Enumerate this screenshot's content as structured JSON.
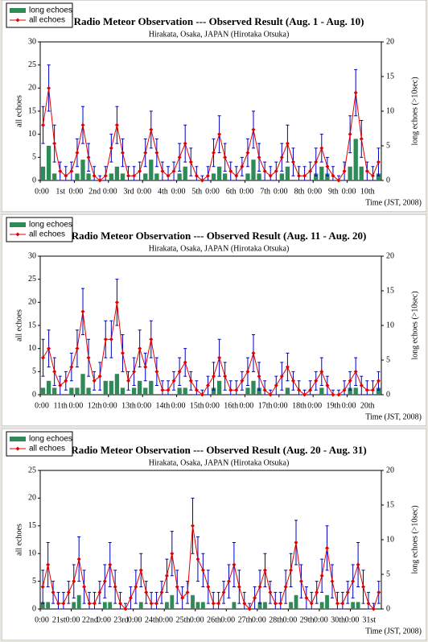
{
  "chart_data": [
    {
      "type": "line",
      "title": "Radio Meteor Observation --- Observed Result (Aug. 1 - Aug. 10)",
      "subtitle": "Hirakata, Osaka, JAPAN (Hirotaka Otsuka)",
      "y_label": "all echoes",
      "y2_label": "long echoes (>10sec)",
      "x_label": "Time (JST, 2008)",
      "legend": "upper left",
      "xlim": [
        0,
        240
      ],
      "xticks": [
        {
          "value": 0,
          "label": "0:00"
        },
        {
          "value": 24,
          "label": "0:00"
        },
        {
          "value": 48,
          "label": "0:00"
        },
        {
          "value": 72,
          "label": "0:00"
        },
        {
          "value": 96,
          "label": "0:00"
        },
        {
          "value": 120,
          "label": "0:00"
        },
        {
          "value": 144,
          "label": "0:00"
        },
        {
          "value": 168,
          "label": "0:00"
        },
        {
          "value": 192,
          "label": "0:00"
        },
        {
          "value": 216,
          "label": "0:00"
        }
      ],
      "day_labels": [
        "1st",
        "2nd",
        "3rd",
        "4th",
        "5th",
        "6th",
        "7th",
        "8th",
        "9th",
        "10th"
      ],
      "ylim": [
        0,
        30
      ],
      "yticks": [
        0,
        5,
        10,
        15,
        20,
        25,
        30
      ],
      "y2lim": [
        0,
        20
      ],
      "y2ticks": [
        0,
        5,
        10,
        15,
        20
      ],
      "x": [
        2,
        6,
        10,
        14,
        18,
        22,
        26,
        30,
        34,
        38,
        42,
        46,
        50,
        54,
        58,
        62,
        66,
        70,
        74,
        78,
        82,
        86,
        90,
        94,
        98,
        102,
        106,
        110,
        114,
        118,
        122,
        126,
        130,
        134,
        138,
        142,
        146,
        150,
        154,
        158,
        162,
        166,
        170,
        174,
        178,
        182,
        186,
        190,
        194,
        198,
        202,
        206,
        210,
        214,
        218,
        222,
        226,
        230,
        234,
        238
      ],
      "series": [
        {
          "name": "long echoes",
          "type": "bar",
          "axis": "y2",
          "color": "#2e8b57",
          "values": [
            2,
            5,
            1,
            0,
            0,
            0,
            1,
            3,
            1,
            0,
            0,
            0,
            1,
            2,
            1,
            0,
            0,
            0,
            1,
            3,
            1,
            0,
            0,
            0,
            1,
            2,
            0,
            0,
            0,
            0,
            1,
            2,
            1,
            0,
            0,
            0,
            1,
            3,
            1,
            0,
            0,
            0,
            1,
            2,
            0,
            0,
            0,
            0,
            1,
            2,
            1,
            0,
            0,
            0,
            2,
            6,
            2,
            0,
            0,
            1
          ]
        },
        {
          "name": "all echoes",
          "type": "line",
          "color": "#e00000",
          "error_color": "#0000c0",
          "values": [
            12,
            20,
            8,
            2,
            1,
            2,
            6,
            12,
            5,
            1,
            0,
            1,
            7,
            12,
            6,
            1,
            1,
            2,
            6,
            11,
            6,
            2,
            1,
            2,
            5,
            8,
            4,
            1,
            0,
            1,
            6,
            10,
            5,
            2,
            1,
            3,
            6,
            11,
            5,
            2,
            1,
            2,
            5,
            8,
            4,
            1,
            1,
            2,
            4,
            7,
            3,
            1,
            0,
            2,
            10,
            19,
            9,
            2,
            1,
            4
          ],
          "errors": [
            4,
            5,
            4,
            2,
            2,
            2,
            3,
            4,
            3,
            2,
            1,
            2,
            3,
            4,
            3,
            2,
            2,
            2,
            3,
            4,
            3,
            2,
            2,
            2,
            3,
            4,
            3,
            2,
            1,
            2,
            3,
            4,
            3,
            2,
            2,
            2,
            3,
            4,
            3,
            2,
            2,
            2,
            3,
            4,
            3,
            2,
            2,
            2,
            3,
            3,
            2,
            2,
            1,
            2,
            4,
            5,
            4,
            2,
            2,
            3
          ]
        }
      ]
    },
    {
      "type": "line",
      "title": "Radio Meteor Observation --- Observed Result (Aug. 11 - Aug. 20)",
      "subtitle": "Hirakata, Osaka, JAPAN (Hirotaka Otsuka)",
      "y_label": "all echoes",
      "y2_label": "long echoes (>10sec)",
      "x_label": "Time (JST, 2008)",
      "legend": "upper left",
      "xlim": [
        0,
        240
      ],
      "xticks": [
        {
          "value": 0,
          "label": "0:00"
        },
        {
          "value": 24,
          "label": "0:00"
        },
        {
          "value": 48,
          "label": "0:00"
        },
        {
          "value": 72,
          "label": "0:00"
        },
        {
          "value": 96,
          "label": "0:00"
        },
        {
          "value": 120,
          "label": "0:00"
        },
        {
          "value": 144,
          "label": "0:00"
        },
        {
          "value": 168,
          "label": "0:00"
        },
        {
          "value": 192,
          "label": "0:00"
        },
        {
          "value": 216,
          "label": "0:00"
        }
      ],
      "day_labels": [
        "11th",
        "12th",
        "13th",
        "14th",
        "15th",
        "16th",
        "17th",
        "18th",
        "19th",
        "20th"
      ],
      "ylim": [
        0,
        30
      ],
      "yticks": [
        0,
        5,
        10,
        15,
        20,
        25,
        30
      ],
      "y2lim": [
        0,
        20
      ],
      "y2ticks": [
        0,
        5,
        10,
        15,
        20
      ],
      "x": [
        2,
        6,
        10,
        14,
        18,
        22,
        26,
        30,
        34,
        38,
        42,
        46,
        50,
        54,
        58,
        62,
        66,
        70,
        74,
        78,
        82,
        86,
        90,
        94,
        98,
        102,
        106,
        110,
        114,
        118,
        122,
        126,
        130,
        134,
        138,
        142,
        146,
        150,
        154,
        158,
        162,
        166,
        170,
        174,
        178,
        182,
        186,
        190,
        194,
        198,
        202,
        206,
        210,
        214,
        218,
        222,
        226,
        230,
        234,
        238
      ],
      "series": [
        {
          "name": "long echoes",
          "type": "bar",
          "axis": "y2",
          "color": "#2e8b57",
          "values": [
            1,
            2,
            1,
            0,
            0,
            1,
            1,
            3,
            1,
            0,
            0,
            2,
            2,
            3,
            1,
            0,
            1,
            2,
            1,
            2,
            0,
            0,
            0,
            0,
            1,
            1,
            0,
            0,
            0,
            0,
            1,
            2,
            0,
            0,
            0,
            0,
            1,
            2,
            1,
            0,
            0,
            0,
            0,
            1,
            0,
            0,
            0,
            0,
            0,
            1,
            0,
            0,
            0,
            0,
            1,
            1,
            0,
            0,
            0,
            1
          ]
        },
        {
          "name": "all echoes",
          "type": "line",
          "color": "#e00000",
          "error_color": "#0000c0",
          "values": [
            8,
            10,
            5,
            2,
            3,
            6,
            10,
            18,
            8,
            3,
            4,
            12,
            12,
            20,
            9,
            3,
            5,
            10,
            6,
            12,
            5,
            1,
            1,
            3,
            5,
            7,
            3,
            1,
            0,
            2,
            4,
            8,
            4,
            1,
            1,
            3,
            5,
            9,
            4,
            1,
            0,
            2,
            4,
            6,
            3,
            1,
            0,
            1,
            3,
            5,
            2,
            0,
            0,
            1,
            3,
            5,
            2,
            1,
            1,
            3
          ],
          "errors": [
            4,
            4,
            3,
            2,
            2,
            3,
            4,
            5,
            4,
            2,
            3,
            4,
            4,
            5,
            4,
            2,
            3,
            4,
            3,
            4,
            3,
            2,
            2,
            2,
            3,
            3,
            2,
            2,
            1,
            2,
            3,
            4,
            3,
            2,
            2,
            2,
            3,
            4,
            3,
            2,
            1,
            2,
            3,
            3,
            2,
            2,
            1,
            2,
            2,
            3,
            2,
            1,
            1,
            2,
            2,
            3,
            2,
            2,
            2,
            2
          ]
        }
      ]
    },
    {
      "type": "line",
      "title": "Radio Meteor Observation --- Observed Result (Aug. 20 - Aug. 31)",
      "subtitle": "Hirakata, Osaka, JAPAN (Hirotaka Otsuka)",
      "y_label": "all echoes",
      "y2_label": "long echoes (>10sec)",
      "x_label": "Time (JST, 2008)",
      "legend": "upper left",
      "xlim": [
        0,
        264
      ],
      "xticks": [
        {
          "value": 0,
          "label": "0:00"
        },
        {
          "value": 24,
          "label": "0:00"
        },
        {
          "value": 48,
          "label": "0:00"
        },
        {
          "value": 72,
          "label": "0:00"
        },
        {
          "value": 96,
          "label": "0:00"
        },
        {
          "value": 120,
          "label": "0:00"
        },
        {
          "value": 144,
          "label": "0:00"
        },
        {
          "value": 168,
          "label": "0:00"
        },
        {
          "value": 192,
          "label": "0:00"
        },
        {
          "value": 216,
          "label": "0:00"
        },
        {
          "value": 240,
          "label": "0:00"
        }
      ],
      "day_labels": [
        "21st",
        "22nd",
        "23rd",
        "24th",
        "25th",
        "26th",
        "27th",
        "28th",
        "29th",
        "30th",
        "31st"
      ],
      "ylim": [
        0,
        25
      ],
      "yticks": [
        0,
        5,
        10,
        15,
        20,
        25
      ],
      "y2lim": [
        0,
        20
      ],
      "y2ticks": [
        0,
        5,
        10,
        15,
        20
      ],
      "x": [
        2,
        6,
        10,
        14,
        18,
        22,
        26,
        30,
        34,
        38,
        42,
        46,
        50,
        54,
        58,
        62,
        66,
        70,
        74,
        78,
        82,
        86,
        90,
        94,
        98,
        102,
        106,
        110,
        114,
        118,
        122,
        126,
        130,
        134,
        138,
        142,
        146,
        150,
        154,
        158,
        162,
        166,
        170,
        174,
        178,
        182,
        186,
        190,
        194,
        198,
        202,
        206,
        210,
        214,
        218,
        222,
        226,
        230,
        234,
        238,
        242,
        246,
        250,
        254,
        258,
        262
      ],
      "series": [
        {
          "name": "long echoes",
          "type": "bar",
          "axis": "y2",
          "color": "#2e8b57",
          "values": [
            1,
            1,
            0,
            0,
            0,
            0,
            1,
            2,
            0,
            0,
            0,
            0,
            1,
            1,
            0,
            0,
            0,
            0,
            0,
            1,
            0,
            0,
            0,
            0,
            1,
            2,
            0,
            0,
            0,
            2,
            1,
            1,
            0,
            0,
            0,
            0,
            0,
            1,
            0,
            0,
            0,
            0,
            1,
            1,
            0,
            0,
            0,
            0,
            1,
            2,
            0,
            0,
            0,
            0,
            1,
            2,
            0,
            0,
            0,
            0,
            1,
            1,
            0,
            0,
            0,
            0
          ]
        },
        {
          "name": "all echoes",
          "type": "line",
          "color": "#e00000",
          "error_color": "#0000c0",
          "values": [
            4,
            8,
            3,
            1,
            1,
            3,
            5,
            9,
            4,
            1,
            1,
            3,
            5,
            8,
            4,
            1,
            0,
            2,
            4,
            7,
            3,
            1,
            1,
            3,
            6,
            10,
            4,
            2,
            3,
            15,
            9,
            7,
            4,
            1,
            1,
            3,
            5,
            8,
            4,
            1,
            0,
            2,
            4,
            7,
            3,
            1,
            1,
            4,
            7,
            12,
            5,
            2,
            1,
            3,
            6,
            11,
            5,
            1,
            1,
            3,
            5,
            8,
            4,
            1,
            0,
            3
          ],
          "errors": [
            3,
            4,
            2,
            2,
            2,
            2,
            3,
            4,
            3,
            2,
            2,
            2,
            3,
            4,
            3,
            2,
            1,
            2,
            3,
            3,
            2,
            2,
            2,
            2,
            3,
            4,
            3,
            2,
            2,
            5,
            4,
            3,
            3,
            2,
            2,
            2,
            3,
            4,
            3,
            2,
            1,
            2,
            3,
            3,
            2,
            2,
            2,
            3,
            3,
            4,
            3,
            2,
            2,
            2,
            3,
            4,
            3,
            2,
            2,
            2,
            3,
            4,
            3,
            2,
            1,
            2
          ]
        }
      ]
    }
  ]
}
